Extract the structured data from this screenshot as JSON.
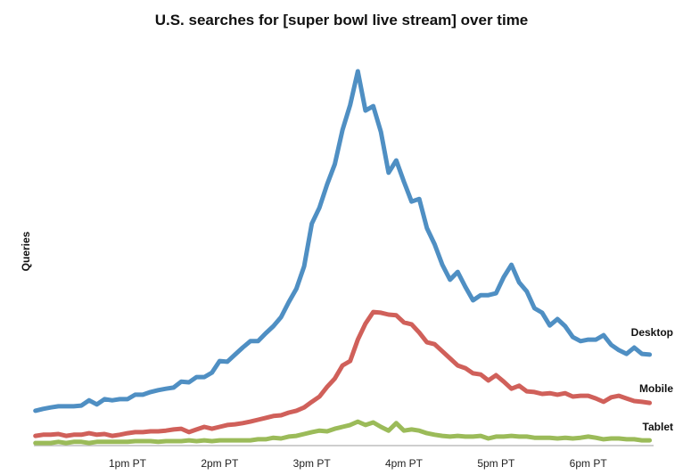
{
  "chart_data": {
    "type": "line",
    "title": "U.S. searches for [super bowl live stream] over time",
    "xlabel": "",
    "ylabel": "Queries",
    "x_unit": "minutes after 12pm PT (5-minute intervals)",
    "x_start_minutes": 0,
    "x_step_minutes": 5,
    "x_ticks": [
      {
        "label": "1pm PT",
        "minutes": 60
      },
      {
        "label": "2pm PT",
        "minutes": 120
      },
      {
        "label": "3pm PT",
        "minutes": 180
      },
      {
        "label": "4pm PT",
        "minutes": 240
      },
      {
        "label": "5pm PT",
        "minutes": 300
      },
      {
        "label": "6pm PT",
        "minutes": 360
      }
    ],
    "xlim_minutes": [
      0,
      403
    ],
    "ylim": [
      0,
      100
    ],
    "y_unit": "relative query volume (Desktop peak ≈ 100)",
    "grid": false,
    "legend": "inline labels at line ends (right)",
    "series": [
      {
        "name": "Desktop",
        "color": "#4F8FC3",
        "values": [
          9.3,
          9.8,
          10.2,
          10.5,
          10.5,
          10.5,
          10.7,
          12.1,
          11.0,
          12.4,
          12.1,
          12.4,
          12.4,
          13.6,
          13.6,
          14.3,
          14.8,
          15.2,
          15.5,
          17.1,
          16.9,
          18.3,
          18.3,
          19.5,
          22.6,
          22.4,
          24.3,
          26.2,
          27.9,
          27.9,
          30.0,
          31.9,
          34.3,
          38.3,
          41.9,
          47.9,
          59.3,
          63.6,
          69.8,
          75.2,
          84.3,
          91.0,
          100.0,
          89.5,
          90.7,
          83.8,
          72.9,
          76.2,
          70.5,
          65.2,
          65.9,
          58.1,
          53.8,
          48.3,
          44.3,
          46.4,
          42.4,
          38.8,
          40.2,
          40.2,
          40.7,
          45.0,
          48.3,
          43.6,
          41.2,
          36.7,
          35.5,
          32.1,
          33.8,
          31.9,
          29.0,
          27.9,
          28.3,
          28.3,
          29.5,
          26.9,
          25.5,
          24.5,
          26.2,
          24.5,
          24.3
        ]
      },
      {
        "name": "Mobile",
        "color": "#D0605A",
        "values": [
          2.6,
          2.9,
          2.9,
          3.1,
          2.6,
          2.9,
          2.9,
          3.3,
          2.9,
          3.1,
          2.6,
          2.9,
          3.3,
          3.6,
          3.6,
          3.8,
          3.8,
          4.0,
          4.3,
          4.5,
          3.6,
          4.3,
          5.0,
          4.5,
          5.0,
          5.5,
          5.7,
          6.0,
          6.4,
          6.9,
          7.4,
          7.9,
          8.1,
          8.8,
          9.3,
          10.2,
          11.7,
          13.1,
          15.7,
          17.9,
          21.4,
          22.6,
          28.3,
          32.6,
          35.7,
          35.5,
          35.0,
          34.8,
          32.9,
          32.4,
          30.2,
          27.6,
          27.1,
          25.2,
          23.3,
          21.4,
          20.7,
          19.3,
          19.0,
          17.4,
          18.8,
          17.1,
          15.2,
          16.0,
          14.5,
          14.3,
          13.8,
          14.0,
          13.6,
          14.0,
          13.1,
          13.3,
          13.3,
          12.6,
          11.7,
          12.9,
          13.3,
          12.6,
          11.9,
          11.7,
          11.4
        ]
      },
      {
        "name": "Tablet",
        "color": "#9BBB59",
        "values": [
          0.7,
          0.7,
          0.7,
          1.0,
          0.7,
          1.0,
          1.0,
          0.7,
          1.0,
          1.0,
          1.0,
          1.0,
          1.0,
          1.2,
          1.2,
          1.2,
          1.0,
          1.2,
          1.2,
          1.2,
          1.4,
          1.2,
          1.4,
          1.2,
          1.4,
          1.4,
          1.4,
          1.4,
          1.4,
          1.7,
          1.7,
          2.1,
          1.9,
          2.4,
          2.6,
          3.1,
          3.6,
          4.0,
          3.8,
          4.5,
          5.0,
          5.5,
          6.4,
          5.5,
          6.2,
          5.0,
          4.0,
          6.0,
          4.0,
          4.3,
          4.0,
          3.3,
          2.9,
          2.6,
          2.4,
          2.6,
          2.4,
          2.4,
          2.6,
          1.9,
          2.4,
          2.4,
          2.6,
          2.4,
          2.4,
          2.1,
          2.1,
          2.1,
          1.9,
          2.1,
          1.9,
          2.1,
          2.4,
          2.1,
          1.7,
          1.9,
          1.9,
          1.7,
          1.7,
          1.4,
          1.4
        ]
      }
    ]
  }
}
